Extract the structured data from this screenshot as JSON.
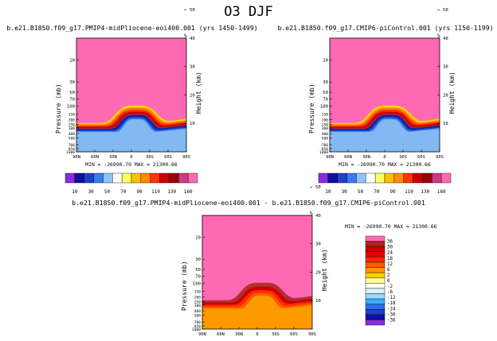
{
  "title": "O3 DJF",
  "chart_data": [
    {
      "type": "contour",
      "title": "b.e21.B1850.f09_g17.PMIP4-midPliocene-eoi400.001 (yrs 1450-1499)",
      "xlabel": "",
      "ylabel": "Pressure (mb)",
      "ylabel_right": "Height (km)",
      "x_ticks": [
        "90N",
        "60N",
        "30N",
        "0",
        "30S",
        "60S",
        "90S"
      ],
      "y_ticks": [
        "10",
        "30",
        "50",
        "70",
        "100",
        "150",
        "200",
        "250",
        "300",
        "400",
        "500",
        "700",
        "850",
        "1000"
      ],
      "y_right_ticks": [
        "10",
        "20",
        "30",
        "40",
        "50"
      ],
      "y_right_top_label": "%",
      "min_text": "MIN = -26990.70",
      "max_text": "MAX = 21300.66",
      "colorbar_labels": [
        "10",
        "30",
        "50",
        "70",
        "90",
        "110",
        "130",
        "160"
      ],
      "colorbar_colors": [
        "#8a2be2",
        "#1010a0",
        "#1f3fd0",
        "#3a7cf0",
        "#8ec3f5",
        "#ffffff",
        "#ffff66",
        "#ffc000",
        "#ff8c00",
        "#ff3300",
        "#cc0000",
        "#990000",
        "#c83b86",
        "#ff69b4"
      ],
      "background_color": "#ff69b4",
      "mound_colors": [
        "#ffd000",
        "#ff7a00",
        "#ff2a00",
        "#cc0000",
        "#aa2233",
        "#0e1fa8",
        "#1a3ec9",
        "#3a7fe6",
        "#82b9f2"
      ]
    },
    {
      "type": "contour",
      "title": "b.e21.B1850.f09_g17.CMIP6-piControl.001 (yrs 1150-1199)",
      "xlabel": "",
      "ylabel": "Pressure (mb)",
      "ylabel_right": "Height (km)",
      "x_ticks": [
        "90N",
        "60N",
        "30N",
        "0",
        "30S",
        "60S",
        "90S"
      ],
      "y_ticks": [
        "10",
        "30",
        "50",
        "70",
        "100",
        "150",
        "200",
        "250",
        "300",
        "400",
        "500",
        "700",
        "850",
        "1000"
      ],
      "y_right_ticks": [
        "10",
        "20",
        "30",
        "40",
        "50"
      ],
      "y_right_top_label": "%",
      "min_text": "MIN = -26990.70",
      "max_text": "MAX = 21300.66",
      "colorbar_labels": [
        "10",
        "30",
        "50",
        "70",
        "90",
        "110",
        "130",
        "160"
      ],
      "colorbar_colors": [
        "#8a2be2",
        "#1010a0",
        "#1f3fd0",
        "#3a7cf0",
        "#8ec3f5",
        "#ffffff",
        "#ffff66",
        "#ffc000",
        "#ff8c00",
        "#ff3300",
        "#cc0000",
        "#990000",
        "#c83b86",
        "#ff69b4"
      ],
      "background_color": "#ff69b4",
      "mound_colors": [
        "#ffd000",
        "#ff7a00",
        "#ff2a00",
        "#cc0000",
        "#aa2233",
        "#0e1fa8",
        "#1a3ec9",
        "#3a7fe6",
        "#82b9f2"
      ]
    },
    {
      "type": "contour",
      "title": "b.e21.B1850.f09_g17.PMIP4-midPliocene-eoi400.001 - b.e21.B1850.f09_g17.CMIP6-piControl.001",
      "xlabel": "",
      "ylabel": "Pressure (mb)",
      "ylabel_right": "Height (km)",
      "x_ticks": [
        "90N",
        "60N",
        "30N",
        "0",
        "30S",
        "60S",
        "90S"
      ],
      "y_ticks": [
        "10",
        "30",
        "50",
        "70",
        "100",
        "150",
        "200",
        "250",
        "300",
        "400",
        "500",
        "700",
        "850",
        "1000"
      ],
      "y_right_ticks": [
        "10",
        "20",
        "30",
        "40",
        "50"
      ],
      "y_right_top_label": "%",
      "min_text": "MIN = -26990.70",
      "max_text": "MAX = 21300.66",
      "colorbar_labels": [
        "36",
        "30",
        "24",
        "18",
        "12",
        "6",
        "2",
        "0",
        "-2",
        "-6",
        "-12",
        "-18",
        "-24",
        "-30",
        "-36"
      ],
      "colorbar_colors": [
        "#ff69b4",
        "#b22222",
        "#cc0000",
        "#e00000",
        "#ff2a00",
        "#ff5a00",
        "#ff9a00",
        "#ffd000",
        "#ffff99",
        "#ffffff",
        "#d8f0ff",
        "#9ad8ff",
        "#36b0ff",
        "#2a6df0",
        "#1f3fd0",
        "#1010a0",
        "#8a2be2"
      ],
      "background_color": "#ff69b4",
      "mound_colors": [
        "#b03030",
        "#cc0000",
        "#ff2a00",
        "#ff5a00",
        "#ff9a00"
      ]
    }
  ]
}
